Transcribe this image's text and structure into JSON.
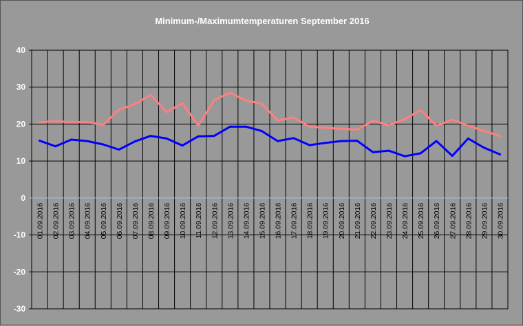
{
  "chart_data": {
    "type": "line",
    "title": "Minimum-/Maximumtemperaturen September 2016",
    "categories": [
      "01.09.2016",
      "02.09.2016",
      "03.09.2016",
      "04.09.2016",
      "05.09.2016",
      "06.09.2016",
      "07.09.2016",
      "08.09.2016",
      "09.09.2016",
      "10.09.2016",
      "11.09.2016",
      "12.09.2016",
      "13.09.2016",
      "14.09.2016",
      "15.09.2016",
      "16.09.2016",
      "17.09.2016",
      "18.09.2016",
      "19.09.2016",
      "20.09.2016",
      "21.09.2016",
      "22.09.2016",
      "23.09.2016",
      "24.09.2016",
      "25.09.2016",
      "26.09.2016",
      "27.09.2016",
      "28.09.2016",
      "29.09.2016",
      "30.09.2016"
    ],
    "series": [
      {
        "color": "#ff8080",
        "values": [
          20.5,
          20.8,
          20.5,
          20.6,
          19.8,
          23.9,
          25.4,
          27.9,
          23.3,
          25.6,
          19.6,
          26.5,
          28.5,
          26.4,
          25.5,
          21.0,
          21.8,
          19.3,
          19.0,
          18.7,
          18.5,
          20.9,
          19.7,
          21.3,
          23.8,
          19.6,
          21.2,
          19.6,
          18.1,
          16.8
        ]
      },
      {
        "color": "#0000ff",
        "values": [
          15.5,
          14.0,
          15.8,
          15.4,
          14.5,
          13.1,
          15.3,
          16.8,
          16.1,
          14.2,
          16.7,
          16.8,
          19.3,
          19.3,
          18.1,
          15.4,
          16.2,
          14.3,
          14.9,
          15.4,
          15.5,
          12.4,
          12.8,
          11.3,
          12.1,
          15.4,
          11.4,
          16.1,
          13.6,
          11.8
        ]
      }
    ],
    "ylim": [
      -30,
      40
    ],
    "yticks": [
      "40",
      "30",
      "20",
      "10",
      "0",
      "-10",
      "-20",
      "-30"
    ],
    "grid": true,
    "zero_line_color": "#87cefa",
    "plot_background": "#999999"
  }
}
